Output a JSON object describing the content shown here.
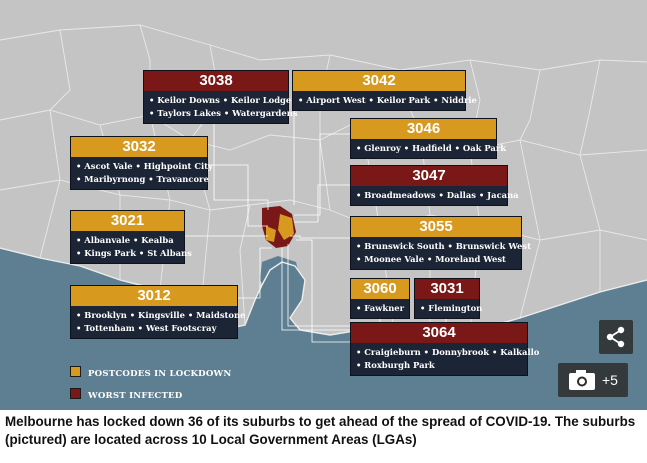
{
  "colors": {
    "lockdown": "#d79a1e",
    "worst": "#7a1818",
    "land": "#c4c4c4",
    "sea": "#5e7f91",
    "panel": "#1c2536"
  },
  "panels": [
    {
      "code": "3038",
      "type": "worst",
      "line1": "• Keilor Downs • Keilor Lodge",
      "line2": "• Taylors Lakes • Watergardens"
    },
    {
      "code": "3042",
      "type": "lockdown",
      "line1": "• Airport West • Keilor Park • Niddrie",
      "line2": ""
    },
    {
      "code": "3032",
      "type": "lockdown",
      "line1": "• Ascot Vale • Highpoint City",
      "line2": "• Maribyrnong • Travancore"
    },
    {
      "code": "3046",
      "type": "lockdown",
      "line1": "• Glenroy • Hadfield • Oak Park",
      "line2": ""
    },
    {
      "code": "3047",
      "type": "worst",
      "line1": "• Broadmeadows • Dallas • Jacana",
      "line2": ""
    },
    {
      "code": "3021",
      "type": "lockdown",
      "line1": "• Albanvale • Kealba",
      "line2": "• Kings Park • St Albans"
    },
    {
      "code": "3055",
      "type": "lockdown",
      "line1": "• Brunswick South • Brunswick West",
      "line2": "• Moonee Vale • Moreland West"
    },
    {
      "code": "3012",
      "type": "lockdown",
      "line1": "• Brooklyn • Kingsville • Maidstone",
      "line2": "• Tottenham • West Footscray"
    },
    {
      "code": "3060",
      "type": "lockdown",
      "line1": "• Fawkner",
      "line2": ""
    },
    {
      "code": "3031",
      "type": "worst",
      "line1": "• Flemington",
      "line2": ""
    },
    {
      "code": "3064",
      "type": "worst",
      "line1": "• Craigieburn • Donnybrook • Kalkallo",
      "line2": "• Roxburgh Park"
    }
  ],
  "legend": {
    "lockdown_label": "POSTCODES IN LOCKDOWN",
    "worst_label": "WORST INFECTED"
  },
  "gallery": {
    "count_label": "+5"
  },
  "icons": {
    "share": "share-icon",
    "camera": "camera-icon"
  },
  "caption": "Melbourne has locked down 36 of its suburbs to get ahead of the spread of COVID-19. The suburbs (pictured) are located across 10 Local Government Areas (LGAs)"
}
